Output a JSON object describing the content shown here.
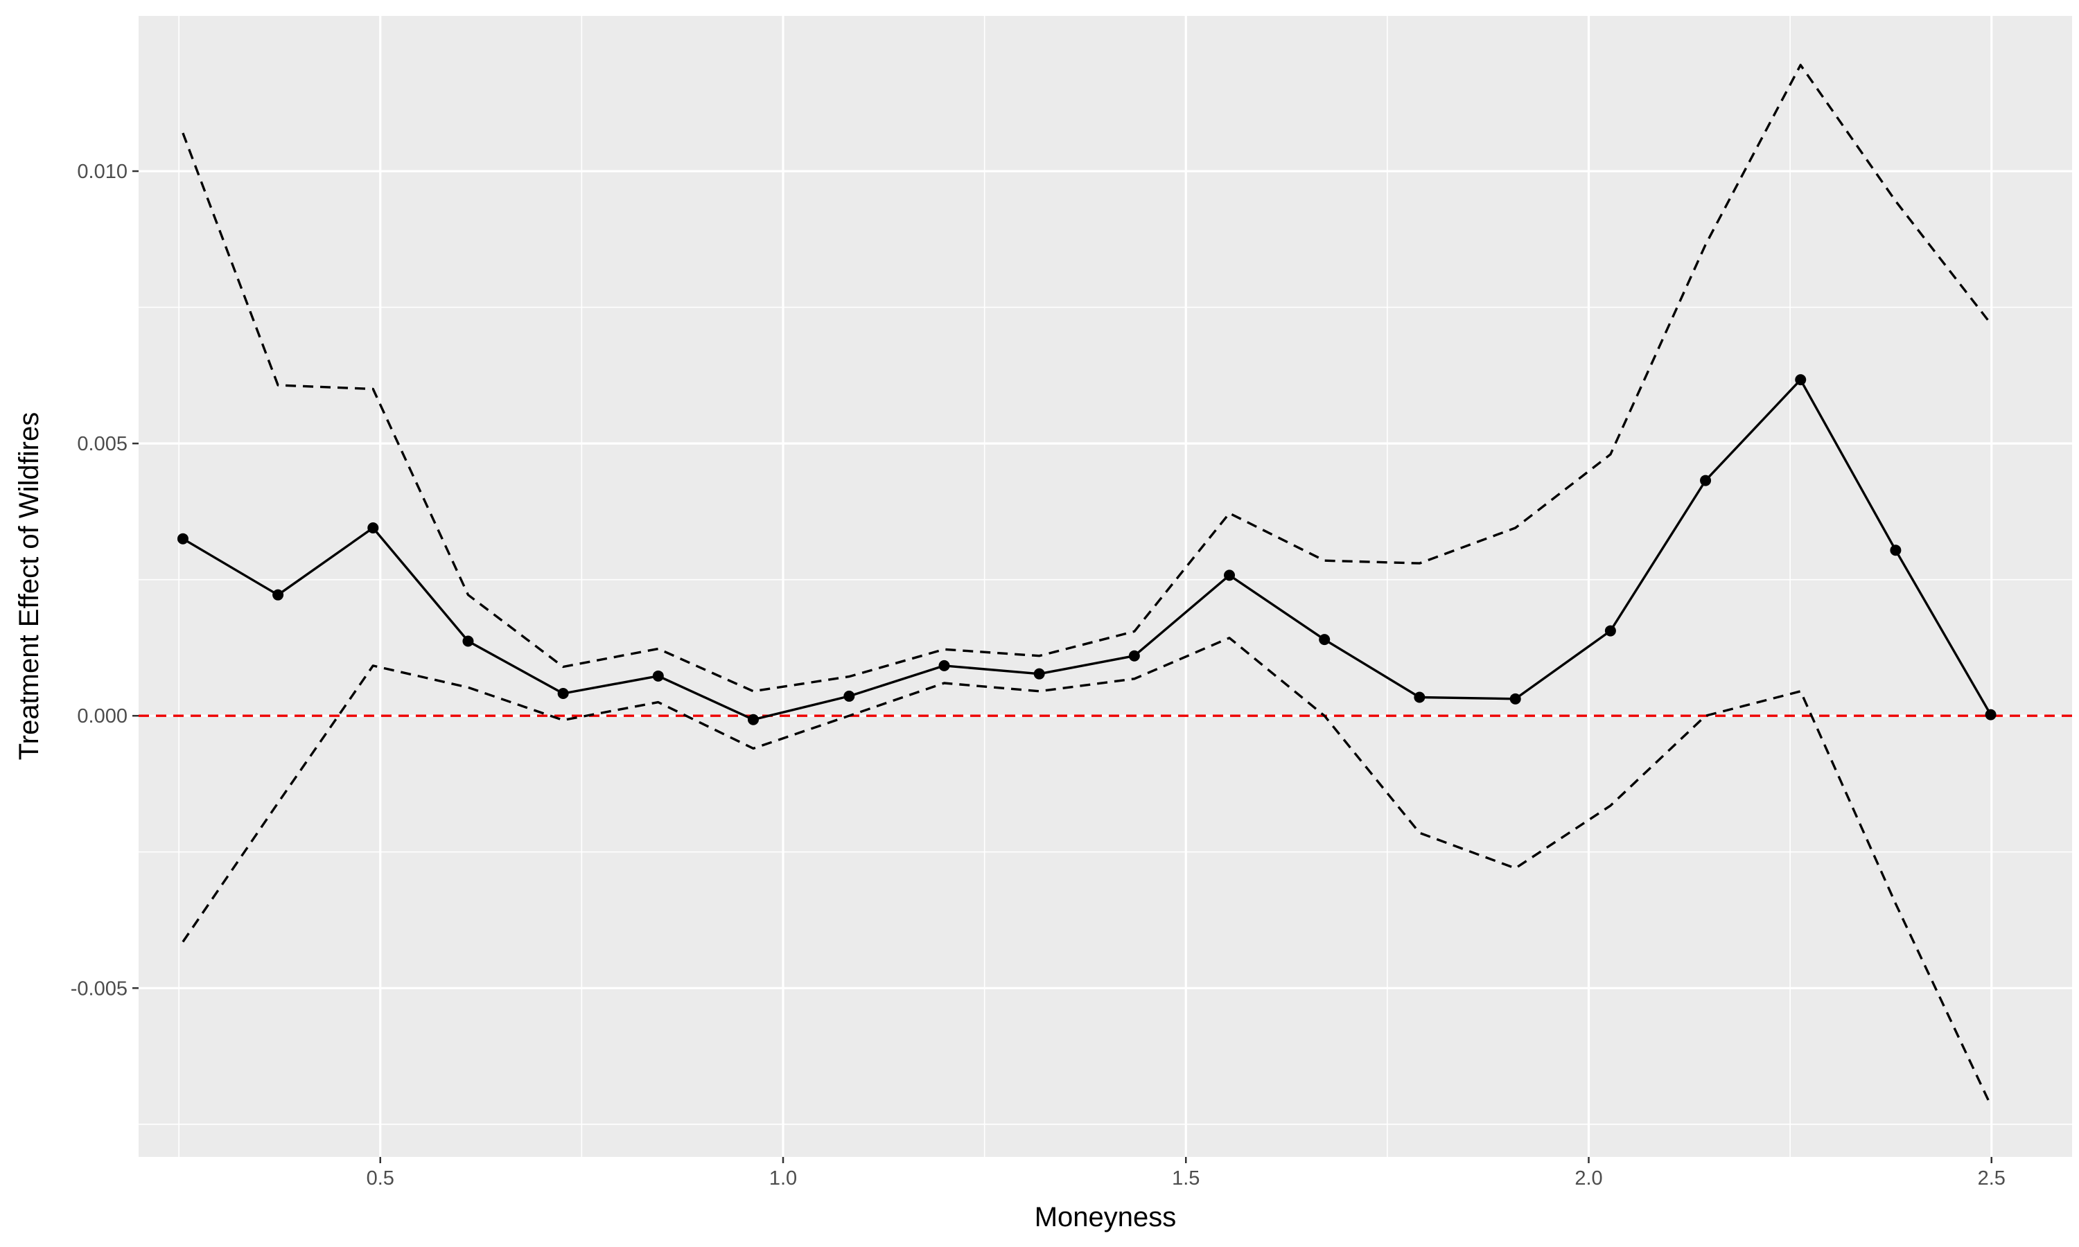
{
  "chart_data": {
    "type": "line",
    "title": "",
    "xlabel": "Moneyness",
    "ylabel": "Treatment Effect of Wildfires",
    "xlim": [
      0.2,
      2.6
    ],
    "ylim": [
      -0.0081,
      0.01285
    ],
    "x_ticks": [
      0.5,
      1.0,
      1.5,
      2.0,
      2.5
    ],
    "x_tick_labels": [
      "0.5",
      "1.0",
      "1.5",
      "2.0",
      "2.5"
    ],
    "y_ticks": [
      -0.005,
      0.0,
      0.005,
      0.01
    ],
    "y_tick_labels": [
      "-0.005",
      "0.000",
      "0.005",
      "0.010"
    ],
    "grid": true,
    "reference_line": {
      "y": 0.0,
      "color": "#ee0000",
      "style": "dashed"
    },
    "x": [
      0.255,
      0.373,
      0.491,
      0.609,
      0.727,
      0.845,
      0.963,
      1.082,
      1.2,
      1.318,
      1.436,
      1.554,
      1.672,
      1.79,
      1.909,
      2.027,
      2.145,
      2.263,
      2.381,
      2.499
    ],
    "series": [
      {
        "role": "estimate",
        "style": "solid",
        "markers": true,
        "values": [
          0.00325,
          0.00222,
          0.00345,
          0.00137,
          0.00041,
          0.00073,
          -7e-05,
          0.00036,
          0.00092,
          0.00077,
          0.0011,
          0.00258,
          0.0014,
          0.00034,
          0.00031,
          0.00156,
          0.00432,
          0.00617,
          0.00304,
          2e-05
        ]
      },
      {
        "role": "upper-bound",
        "style": "dashed",
        "markers": false,
        "values": [
          0.0107,
          0.00607,
          0.006,
          0.00222,
          0.0009,
          0.00123,
          0.00045,
          0.00072,
          0.00122,
          0.0011,
          0.00155,
          0.00372,
          0.00285,
          0.0028,
          0.00345,
          0.0048,
          0.00865,
          0.01195,
          0.00945,
          0.0072
        ]
      },
      {
        "role": "lower-bound",
        "style": "dashed",
        "markers": false,
        "values": [
          -0.00415,
          -0.0016,
          0.00092,
          0.00052,
          -8e-05,
          0.00025,
          -0.0006,
          0.0,
          0.0006,
          0.00045,
          0.00068,
          0.00143,
          0.0,
          -0.00215,
          -0.0028,
          -0.00165,
          0.0,
          0.00045,
          -0.00345,
          -0.00715
        ]
      }
    ]
  }
}
